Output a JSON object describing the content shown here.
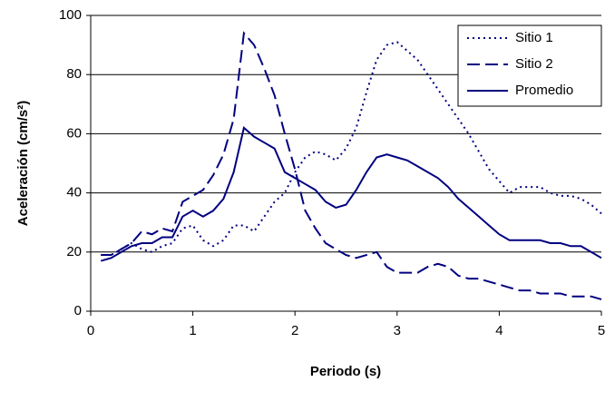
{
  "chart_data": {
    "type": "line",
    "xlabel": "Periodo (s)",
    "ylabel": "Aceleración (cm/s²)",
    "x": [
      0.1,
      0.2,
      0.3,
      0.4,
      0.5,
      0.6,
      0.7,
      0.8,
      0.9,
      1.0,
      1.1,
      1.2,
      1.3,
      1.4,
      1.5,
      1.6,
      1.7,
      1.8,
      1.9,
      2.0,
      2.1,
      2.2,
      2.3,
      2.4,
      2.5,
      2.6,
      2.7,
      2.8,
      2.9,
      3.0,
      3.1,
      3.2,
      3.3,
      3.4,
      3.5,
      3.6,
      3.7,
      3.8,
      3.9,
      4.0,
      4.1,
      4.2,
      4.3,
      4.4,
      4.5,
      4.6,
      4.7,
      4.8,
      4.9,
      5.0
    ],
    "series": [
      {
        "name": "Sitio 1",
        "color": "#000080",
        "dash": "dotted",
        "values": [
          19,
          19,
          21,
          23,
          21,
          20,
          22,
          23,
          28,
          29,
          24,
          22,
          24,
          29,
          29,
          27,
          32,
          37,
          40,
          47,
          52,
          54,
          53,
          51,
          55,
          62,
          74,
          85,
          90,
          91,
          88,
          85,
          80,
          75,
          70,
          65,
          60,
          54,
          48,
          44,
          40,
          42,
          42,
          42,
          40,
          39,
          39,
          38,
          36,
          33
        ]
      },
      {
        "name": "Sitio 2",
        "color": "#000080",
        "dash": "dashed",
        "values": [
          19,
          19,
          21,
          23,
          27,
          26,
          28,
          27,
          37,
          39,
          41,
          46,
          53,
          65,
          94,
          90,
          82,
          73,
          60,
          48,
          34,
          28,
          23,
          21,
          19,
          18,
          19,
          20,
          15,
          13,
          13,
          13,
          15,
          16,
          15,
          12,
          11,
          11,
          10,
          9,
          8,
          7,
          7,
          6,
          6,
          6,
          5,
          5,
          5,
          4
        ]
      },
      {
        "name": "Promedio",
        "color": "#000080",
        "dash": "solid",
        "values": [
          17,
          18,
          20,
          22,
          23,
          23,
          25,
          25,
          32,
          34,
          32,
          34,
          38,
          47,
          62,
          59,
          57,
          55,
          47,
          45,
          43,
          41,
          37,
          35,
          36,
          41,
          47,
          52,
          53,
          52,
          51,
          49,
          47,
          45,
          42,
          38,
          35,
          32,
          29,
          26,
          24,
          24,
          24,
          24,
          23,
          23,
          22,
          22,
          20,
          18
        ]
      }
    ],
    "xlim": [
      0,
      5
    ],
    "xticks": [
      0,
      1,
      2,
      3,
      4,
      5
    ],
    "ylim": [
      0,
      100
    ],
    "yticks": [
      0,
      20,
      40,
      60,
      80,
      100
    ],
    "grid": true,
    "legend": "top-right"
  }
}
